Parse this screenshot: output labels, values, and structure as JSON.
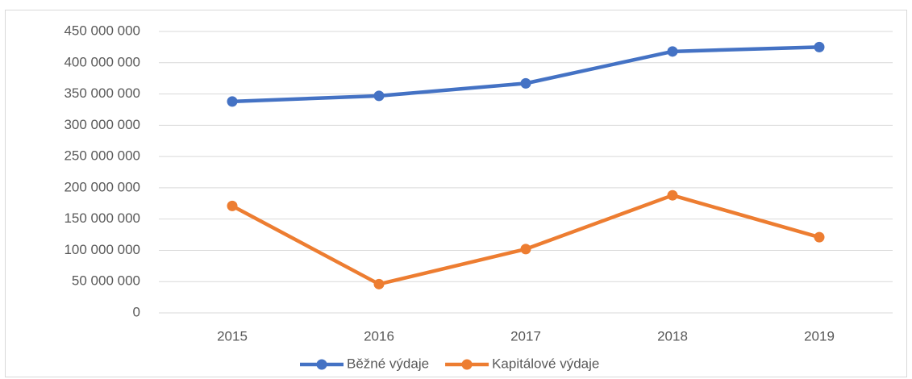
{
  "chart_data": {
    "type": "line",
    "categories": [
      "2015",
      "2016",
      "2017",
      "2018",
      "2019"
    ],
    "series": [
      {
        "name": "Běžné výdaje",
        "color": "#4472c4",
        "values": [
          338000000,
          347000000,
          367000000,
          418000000,
          425000000
        ]
      },
      {
        "name": "Kapitálové výdaje",
        "color": "#ed7d31",
        "values": [
          171000000,
          46000000,
          102000000,
          188000000,
          121000000
        ]
      }
    ],
    "ylim": [
      0,
      450000000
    ],
    "yticks": [
      0,
      {
        "value": 50000000,
        "label": "50 000 000"
      },
      {
        "value": 100000000,
        "label": "100 000 000"
      },
      {
        "value": 150000000,
        "label": "150 000 000"
      },
      {
        "value": 200000000,
        "label": "200 000 000"
      },
      {
        "value": 250000000,
        "label": "250 000 000"
      },
      {
        "value": 300000000,
        "label": "300 000 000"
      },
      {
        "value": 350000000,
        "label": "350 000 000"
      },
      {
        "value": 400000000,
        "label": "400 000 000"
      },
      {
        "value": 450000000,
        "label": "450 000 000"
      }
    ],
    "grid": true,
    "legend": "bottom"
  }
}
